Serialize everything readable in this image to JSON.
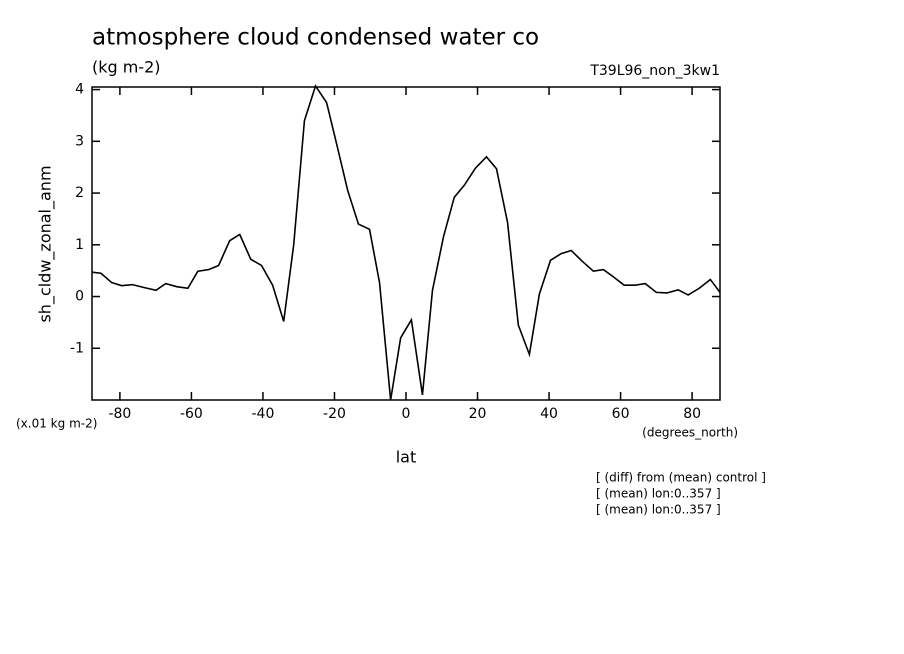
{
  "chart_data": {
    "type": "line",
    "title": "atmosphere cloud condensed water co",
    "subtitle": "(kg m-2)",
    "run_label": "T39L96_non_3kw1",
    "y_label": "sh_cldw_zonal_anm",
    "y_units": "(x.01 kg m-2)",
    "x_units": "(degrees_north)",
    "x_label": "lat",
    "notes": [
      "[ (diff) from (mean) control ]",
      "[ (mean) lon:0..357 ]",
      "[ (mean) lon:0..357 ]"
    ],
    "x": [
      -87.8,
      -85.3,
      -82.3,
      -79.5,
      -76.5,
      -73.0,
      -69.9,
      -67.2,
      -64.1,
      -61.0,
      -58.2,
      -55.2,
      -52.4,
      -49.3,
      -46.5,
      -43.4,
      -40.4,
      -37.3,
      -34.2,
      -31.4,
      -28.4,
      -25.3,
      -22.2,
      -19.4,
      -16.3,
      -13.3,
      -10.2,
      -7.4,
      -4.3,
      -1.5,
      1.5,
      4.6,
      7.4,
      10.5,
      13.5,
      16.3,
      19.4,
      22.5,
      25.3,
      28.4,
      31.4,
      34.5,
      37.3,
      40.4,
      43.4,
      46.2,
      49.3,
      52.4,
      55.2,
      58.0,
      61.0,
      64.1,
      66.9,
      70.0,
      73.0,
      76.1,
      78.9,
      82.0,
      85.1,
      87.8
    ],
    "series": [
      {
        "color": "#000000",
        "values": [
          0.47,
          0.45,
          0.27,
          0.21,
          0.23,
          0.17,
          0.12,
          0.25,
          0.19,
          0.16,
          0.49,
          0.52,
          0.6,
          1.08,
          1.2,
          0.72,
          0.6,
          0.22,
          -0.48,
          1.0,
          3.4,
          4.07,
          3.75,
          2.95,
          2.05,
          1.4,
          1.3,
          0.27,
          -2.0,
          -0.8,
          -0.45,
          -1.9,
          0.12,
          1.16,
          1.92,
          2.15,
          2.48,
          2.7,
          2.47,
          1.43,
          -0.55,
          -1.12,
          0.05,
          0.7,
          0.83,
          0.89,
          0.68,
          0.49,
          0.52,
          0.38,
          0.22,
          0.22,
          0.25,
          0.08,
          0.07,
          0.13,
          0.03,
          0.16,
          0.33,
          0.08
        ]
      }
    ],
    "xlim": [
      -87.8,
      87.8
    ],
    "ylim": [
      -2,
      4.05
    ],
    "xticks": [
      -80,
      -60,
      -40,
      -20,
      0,
      20,
      40,
      60,
      80
    ],
    "yticks": [
      -1,
      0,
      1,
      2,
      3,
      4
    ]
  }
}
